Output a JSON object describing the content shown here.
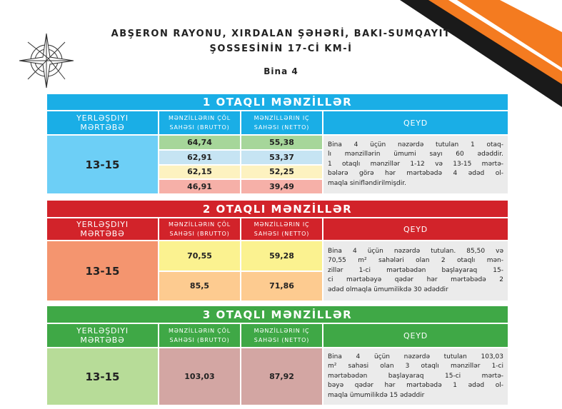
{
  "header": {
    "title_lines": [
      "ABŞERON RAYONU, XIRDALAN ŞƏHƏRİ, BAKI-SUMQAYIT",
      "ŞOSSESİNİN 17-Cİ KM-İ"
    ],
    "subtitle": "Bina 4"
  },
  "sections": [
    {
      "title": "1 OTAQLI MƏNZİLLƏR",
      "columns": [
        [
          "YERLƏŞDIYI",
          "MƏRTƏBƏ"
        ],
        [
          "MƏNZİLLƏRIN ÇÖL",
          "SAHƏSI (BRUTTO)"
        ],
        [
          "MƏNZİLLƏRIN IÇ",
          "SAHƏSI (NETTO)"
        ],
        [
          "QEYD"
        ]
      ],
      "floor": "13-15",
      "rows": [
        [
          "64,74",
          "55,38"
        ],
        [
          "62,91",
          "53,37"
        ],
        [
          "62,15",
          "52,25"
        ],
        [
          "46,91",
          "39,49"
        ]
      ],
      "note": [
        "Bina 4 üçün nəzərdə tutulan 1 otaq-",
        "lı mənzillərin ümumi sayı 60 ədəddir.",
        "1 otaqlı mənzillər 1-12 və 13-15 mərtə-",
        "bələrə görə hər mərtəbədə 4 ədəd ol-",
        "maqla sinifləndirilmişdir."
      ]
    },
    {
      "title": "2 OTAQLI MƏNZİLLƏR",
      "columns": [
        [
          "YERLƏŞDIYI",
          "MƏRTƏBƏ"
        ],
        [
          "MƏNZİLLƏRIN ÇÖL",
          "SAHƏSI (BRUTTO)"
        ],
        [
          "MƏNZİLLƏRIN IÇ",
          "SAHƏSI (NETTO)"
        ],
        [
          "QEYD"
        ]
      ],
      "floor": "13-15",
      "rows": [
        [
          "70,55",
          "59,28"
        ],
        [
          "85,5",
          "71,86"
        ]
      ],
      "note": [
        "Bina 4 üçün nəzərdə tutulan. 85,50 və",
        "70,55 m² sahələri olan 2 otaqlı mən-",
        "zillər 1-ci mərtəbədən başlayaraq 15-",
        "ci mərtəbəyə qədər hər mərtəbədə 2",
        "ədəd olmaqla ümumilikdə 30 ədəddir"
      ]
    },
    {
      "title": "3 OTAQLI MƏNZİLLƏR",
      "columns": [
        [
          "YERLƏŞDIYI",
          "MƏRTƏBƏ"
        ],
        [
          "MƏNZİLLƏRIN ÇÖL",
          "SAHƏSI (BRUTTO)"
        ],
        [
          "MƏNZİLLƏRIN IÇ",
          "SAHƏSI (NETTO)"
        ],
        [
          "QEYD"
        ]
      ],
      "floor": "13-15",
      "rows": [
        [
          "103,03",
          "87,92"
        ]
      ],
      "note": [
        "Bina 4 üçün nəzərdə tutulan 103,03",
        "m² sahəsi olan 3 otaqlı mənzillər 1-ci",
        "mərtəbədən başlayaraq 15-ci mərtə-",
        "bəyə qədər hər mərtəbədə 1 ədəd ol-",
        "maqla ümumilikdə 15 ədəddir"
      ]
    }
  ]
}
